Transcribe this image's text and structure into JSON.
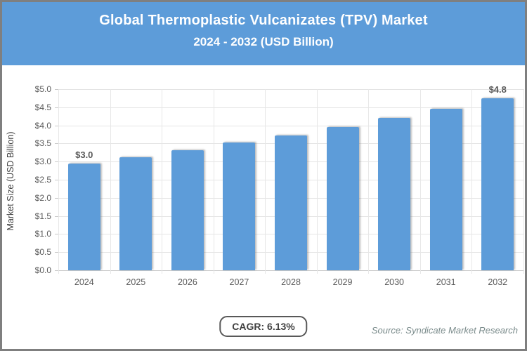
{
  "header": {
    "title_line1": "Global Thermoplastic Vulcanizates (TPV) Market",
    "title_line2": "2024 - 2032 (USD Billion)"
  },
  "chart_data": {
    "type": "bar",
    "title": "Global Thermoplastic Vulcanizates (TPV) Market 2024 - 2032 (USD Billion)",
    "categories": [
      "2024",
      "2025",
      "2026",
      "2027",
      "2028",
      "2029",
      "2030",
      "2031",
      "2032"
    ],
    "values": [
      2.95,
      3.12,
      3.31,
      3.52,
      3.73,
      3.96,
      4.21,
      4.46,
      4.75
    ],
    "data_labels": [
      "$3.0",
      "",
      "",
      "",
      "",
      "",
      "",
      "",
      "$4.8"
    ],
    "xlabel": "",
    "ylabel": "Market Size (USD Billion)",
    "ylim": [
      0,
      5
    ],
    "ytick_step": 0.5,
    "ytick_labels": [
      "$5.0",
      "$4.5",
      "$4.0",
      "$3.5",
      "$3.0",
      "$2.5",
      "$2.0",
      "$1.5",
      "$1.0",
      "$0.5",
      "$0.0"
    ],
    "grid": true,
    "legend": "none",
    "bar_color": "#5d9cd9"
  },
  "footer": {
    "cagr_label": "CAGR: 6.13%",
    "source": "Source: Syndicate Market Research"
  }
}
